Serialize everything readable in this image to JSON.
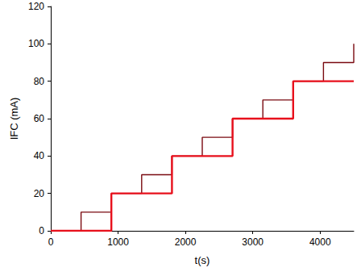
{
  "chart_data": {
    "type": "line",
    "x_label": "t(s)",
    "y_label": "IFC (mA)",
    "xlim": [
      0,
      4500
    ],
    "xticks": [
      0,
      1000,
      2000,
      3000,
      4000
    ],
    "ylim": [
      0,
      120
    ],
    "yticks": [
      0,
      20,
      40,
      60,
      80,
      100,
      120
    ],
    "grid": false,
    "line_style": "step",
    "series": [
      {
        "color": "#7a0a10",
        "x": [
          0,
          450,
          900,
          1350,
          1800,
          2250,
          2700,
          3150,
          3600,
          4050,
          4500
        ],
        "values": [
          0,
          10,
          20,
          30,
          40,
          50,
          60,
          70,
          80,
          90,
          100
        ]
      },
      {
        "color": "#e8101c",
        "x": [
          0,
          900,
          1800,
          2700,
          3600,
          4500
        ],
        "values": [
          0,
          20,
          40,
          60,
          80,
          80
        ]
      }
    ]
  }
}
